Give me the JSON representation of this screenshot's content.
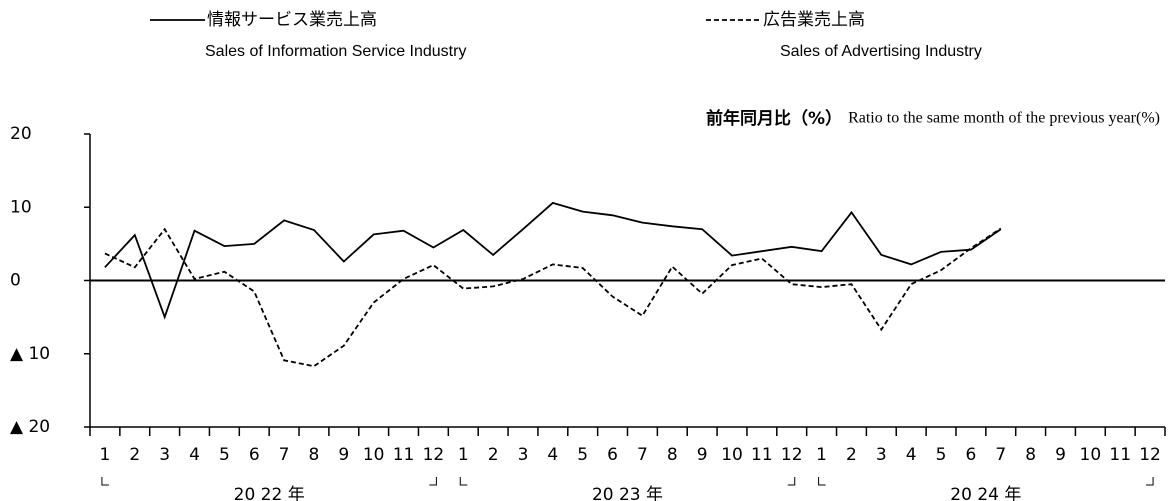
{
  "chart_data": {
    "type": "line",
    "annotation_ja": "前年同月比（%）",
    "annotation_en": "Ratio to the same month of the previous year(%)",
    "categories": [
      "1",
      "2",
      "3",
      "4",
      "5",
      "6",
      "7",
      "8",
      "9",
      "10",
      "11",
      "12",
      "1",
      "2",
      "3",
      "4",
      "5",
      "6",
      "7",
      "8",
      "9",
      "10",
      "11",
      "12",
      "1",
      "2",
      "3",
      "4",
      "5",
      "6",
      "7",
      "8",
      "9",
      "10",
      "11",
      "12"
    ],
    "year_labels": [
      "20 22 年",
      "20 23 年",
      "20 24 年"
    ],
    "series": [
      {
        "name": "情報サービス業売上高",
        "name_en": "Sales of Information Service Industry",
        "color": "#000000",
        "dash": "solid",
        "values": [
          1.8,
          6.2,
          -5,
          6.8,
          4.7,
          5.0,
          8.2,
          6.9,
          2.6,
          6.3,
          6.8,
          4.5,
          6.9,
          3.5,
          7.0,
          10.6,
          9.4,
          8.9,
          7.9,
          7.4,
          7.0,
          3.4,
          4.0,
          4.6,
          4.0,
          9.3,
          3.5,
          2.2,
          3.9,
          4.2,
          7.0,
          null,
          null,
          null,
          null,
          null
        ]
      },
      {
        "name": "広告業売上高",
        "name_en": "Sales of Advertising Industry",
        "color": "#000000",
        "dash": "dashed",
        "values": [
          3.7,
          1.8,
          7.0,
          0.2,
          1.2,
          -1.5,
          -10.9,
          -11.7,
          -8.9,
          -3.0,
          0.2,
          2.1,
          -1.1,
          -0.8,
          0.2,
          2.2,
          1.7,
          -2.2,
          -4.8,
          1.9,
          -1.8,
          2.1,
          3.0,
          -0.5,
          -0.9,
          -0.5,
          -6.7,
          -0.5,
          1.4,
          4.4,
          7.1,
          null,
          null,
          null,
          null,
          null
        ]
      }
    ],
    "ylim": [
      -20,
      20
    ],
    "yticks": [
      {
        "value": -20,
        "label": "▲ 20"
      },
      {
        "value": -10,
        "label": "▲ 10"
      },
      0,
      10,
      20
    ],
    "grid": false
  }
}
